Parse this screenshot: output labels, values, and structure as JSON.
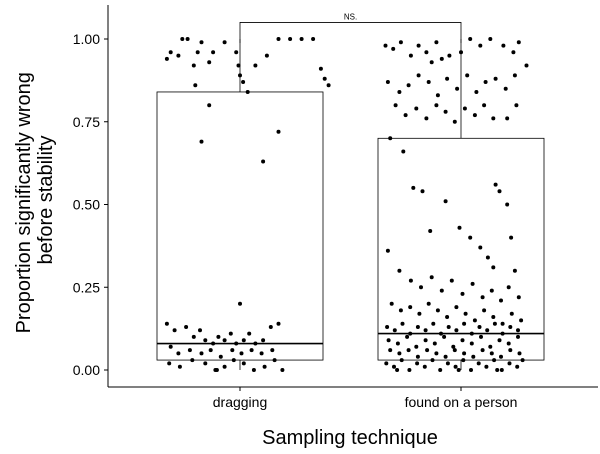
{
  "chart_data": {
    "type": "boxplot",
    "title": "",
    "xlabel": "Sampling technique",
    "ylabel_lines": [
      "Proportion significantly wrong",
      "before stability"
    ],
    "categories": [
      "dragging",
      "found on a person"
    ],
    "ylim": [
      -0.05,
      1.1
    ],
    "yticks": [
      0.0,
      0.25,
      0.5,
      0.75,
      1.0
    ],
    "ytick_labels": [
      "0.00",
      "0.25",
      "0.50",
      "0.75",
      "1.00"
    ],
    "grid": false,
    "legend": "none",
    "colors": {
      "box": "#000000",
      "points": "#000000",
      "background": "#ffffff"
    },
    "boxes": [
      {
        "category": "dragging",
        "q1": 0.03,
        "median": 0.08,
        "q3": 0.84,
        "whisker_low": 0.0,
        "whisker_high": 1.0
      },
      {
        "category": "found on a person",
        "q1": 0.03,
        "median": 0.11,
        "q3": 0.7,
        "whisker_low": 0.0,
        "whisker_high": 1.0
      }
    ],
    "significance": {
      "label": "NS.",
      "between": [
        "dragging",
        "found on a person"
      ],
      "y": 1.05
    },
    "points": [
      {
        "c": 0,
        "j": -0.45,
        "y": 0.94
      },
      {
        "c": 0,
        "j": -0.4,
        "y": 0.96
      },
      {
        "c": 0,
        "j": -0.3,
        "y": 0.95
      },
      {
        "c": 0,
        "j": -0.25,
        "y": 1.0
      },
      {
        "c": 0,
        "j": -0.18,
        "y": 1.0
      },
      {
        "c": 0,
        "j": -0.1,
        "y": 0.92
      },
      {
        "c": 0,
        "j": -0.05,
        "y": 0.96
      },
      {
        "c": 0,
        "j": 0.1,
        "y": 0.93
      },
      {
        "c": 0,
        "j": 0.15,
        "y": 0.96
      },
      {
        "c": 0,
        "j": 0.3,
        "y": 0.99
      },
      {
        "c": 0,
        "j": 0.45,
        "y": 0.96
      },
      {
        "c": 0,
        "j": 0.48,
        "y": 0.92
      },
      {
        "c": 0,
        "j": 0.5,
        "y": 0.89
      },
      {
        "c": 0,
        "j": 0.54,
        "y": 0.87
      },
      {
        "c": 0,
        "j": -0.08,
        "y": 0.86
      },
      {
        "c": 0,
        "j": 0.0,
        "y": 0.99
      },
      {
        "c": 0,
        "j": 0.6,
        "y": 0.84
      },
      {
        "c": 0,
        "j": 0.7,
        "y": 0.92
      },
      {
        "c": 0,
        "j": 0.85,
        "y": 0.95
      },
      {
        "c": 0,
        "j": 1.0,
        "y": 1.0
      },
      {
        "c": 0,
        "j": 1.15,
        "y": 1.0
      },
      {
        "c": 0,
        "j": 1.3,
        "y": 1.0
      },
      {
        "c": 0,
        "j": 1.45,
        "y": 1.0
      },
      {
        "c": 0,
        "j": 1.55,
        "y": 0.91
      },
      {
        "c": 0,
        "j": 1.6,
        "y": 0.88
      },
      {
        "c": 0,
        "j": 1.65,
        "y": 0.86
      },
      {
        "c": 0,
        "j": 0.2,
        "y": 0.0
      },
      {
        "c": 0,
        "j": 0.1,
        "y": 0.8
      },
      {
        "c": 0,
        "j": 0.0,
        "y": 0.69
      },
      {
        "c": 0,
        "j": 0.8,
        "y": 0.63
      },
      {
        "c": 0,
        "j": 1.0,
        "y": 0.72
      },
      {
        "c": 0,
        "j": 0.5,
        "y": 0.2
      },
      {
        "c": 0,
        "j": -0.45,
        "y": 0.14
      },
      {
        "c": 0,
        "j": -0.35,
        "y": 0.12
      },
      {
        "c": 0,
        "j": -0.2,
        "y": 0.13
      },
      {
        "c": 0,
        "j": -0.1,
        "y": 0.1
      },
      {
        "c": 0,
        "j": -0.02,
        "y": 0.12
      },
      {
        "c": 0,
        "j": 0.05,
        "y": 0.09
      },
      {
        "c": 0,
        "j": 0.15,
        "y": 0.08
      },
      {
        "c": 0,
        "j": 0.22,
        "y": 0.1
      },
      {
        "c": 0,
        "j": 0.3,
        "y": 0.09
      },
      {
        "c": 0,
        "j": 0.38,
        "y": 0.11
      },
      {
        "c": 0,
        "j": 0.45,
        "y": 0.08
      },
      {
        "c": 0,
        "j": 0.55,
        "y": 0.09
      },
      {
        "c": 0,
        "j": 0.62,
        "y": 0.11
      },
      {
        "c": 0,
        "j": 0.7,
        "y": 0.08
      },
      {
        "c": 0,
        "j": 0.8,
        "y": 0.09
      },
      {
        "c": 0,
        "j": 0.9,
        "y": 0.13
      },
      {
        "c": 0,
        "j": 1.0,
        "y": 0.14
      },
      {
        "c": 0,
        "j": -0.4,
        "y": 0.07
      },
      {
        "c": 0,
        "j": -0.3,
        "y": 0.05
      },
      {
        "c": 0,
        "j": -0.15,
        "y": 0.06
      },
      {
        "c": 0,
        "j": 0.0,
        "y": 0.05
      },
      {
        "c": 0,
        "j": 0.12,
        "y": 0.06
      },
      {
        "c": 0,
        "j": 0.25,
        "y": 0.04
      },
      {
        "c": 0,
        "j": 0.4,
        "y": 0.06
      },
      {
        "c": 0,
        "j": 0.52,
        "y": 0.05
      },
      {
        "c": 0,
        "j": 0.65,
        "y": 0.06
      },
      {
        "c": 0,
        "j": 0.78,
        "y": 0.05
      },
      {
        "c": 0,
        "j": 0.92,
        "y": 0.06
      },
      {
        "c": 0,
        "j": -0.42,
        "y": 0.02
      },
      {
        "c": 0,
        "j": -0.28,
        "y": 0.01
      },
      {
        "c": 0,
        "j": -0.12,
        "y": 0.03
      },
      {
        "c": 0,
        "j": 0.05,
        "y": 0.02
      },
      {
        "c": 0,
        "j": 0.18,
        "y": 0.0
      },
      {
        "c": 0,
        "j": 0.3,
        "y": 0.01
      },
      {
        "c": 0,
        "j": 0.42,
        "y": 0.03
      },
      {
        "c": 0,
        "j": 0.55,
        "y": 0.02
      },
      {
        "c": 0,
        "j": 0.68,
        "y": 0.0
      },
      {
        "c": 0,
        "j": 0.82,
        "y": 0.01
      },
      {
        "c": 0,
        "j": 0.95,
        "y": 0.03
      },
      {
        "c": 0,
        "j": 1.05,
        "y": 0.0
      },
      {
        "c": 1,
        "j": -0.48,
        "y": 0.98
      },
      {
        "c": 1,
        "j": -0.38,
        "y": 0.97
      },
      {
        "c": 1,
        "j": -0.28,
        "y": 0.99
      },
      {
        "c": 1,
        "j": -0.15,
        "y": 0.95
      },
      {
        "c": 1,
        "j": -0.05,
        "y": 0.98
      },
      {
        "c": 1,
        "j": 0.05,
        "y": 0.96
      },
      {
        "c": 1,
        "j": 0.12,
        "y": 0.93
      },
      {
        "c": 1,
        "j": 0.18,
        "y": 0.99
      },
      {
        "c": 1,
        "j": 0.25,
        "y": 0.94
      },
      {
        "c": 1,
        "j": 0.35,
        "y": 0.95
      },
      {
        "c": 1,
        "j": 0.5,
        "y": 0.96
      },
      {
        "c": 1,
        "j": 0.62,
        "y": 1.0
      },
      {
        "c": 1,
        "j": 0.75,
        "y": 0.98
      },
      {
        "c": 1,
        "j": 0.88,
        "y": 1.0
      },
      {
        "c": 1,
        "j": 1.05,
        "y": 0.98
      },
      {
        "c": 1,
        "j": 1.18,
        "y": 0.96
      },
      {
        "c": 1,
        "j": 1.25,
        "y": 0.99
      },
      {
        "c": 1,
        "j": 1.35,
        "y": 0.92
      },
      {
        "c": 1,
        "j": -0.45,
        "y": 0.87
      },
      {
        "c": 1,
        "j": -0.3,
        "y": 0.84
      },
      {
        "c": 1,
        "j": -0.18,
        "y": 0.86
      },
      {
        "c": 1,
        "j": -0.05,
        "y": 0.89
      },
      {
        "c": 1,
        "j": 0.08,
        "y": 0.87
      },
      {
        "c": 1,
        "j": 0.2,
        "y": 0.83
      },
      {
        "c": 1,
        "j": 0.32,
        "y": 0.88
      },
      {
        "c": 1,
        "j": 0.45,
        "y": 0.85
      },
      {
        "c": 1,
        "j": 0.58,
        "y": 0.89
      },
      {
        "c": 1,
        "j": 0.7,
        "y": 0.84
      },
      {
        "c": 1,
        "j": 0.82,
        "y": 0.87
      },
      {
        "c": 1,
        "j": 0.95,
        "y": 0.88
      },
      {
        "c": 1,
        "j": 1.08,
        "y": 0.85
      },
      {
        "c": 1,
        "j": 1.2,
        "y": 0.89
      },
      {
        "c": 1,
        "j": -0.35,
        "y": 0.8
      },
      {
        "c": 1,
        "j": -0.22,
        "y": 0.77
      },
      {
        "c": 1,
        "j": -0.08,
        "y": 0.79
      },
      {
        "c": 1,
        "j": 0.05,
        "y": 0.76
      },
      {
        "c": 1,
        "j": 0.18,
        "y": 0.8
      },
      {
        "c": 1,
        "j": 0.3,
        "y": 0.78
      },
      {
        "c": 1,
        "j": 0.42,
        "y": 0.75
      },
      {
        "c": 1,
        "j": 0.55,
        "y": 0.79
      },
      {
        "c": 1,
        "j": 0.68,
        "y": 0.77
      },
      {
        "c": 1,
        "j": 0.8,
        "y": 0.8
      },
      {
        "c": 1,
        "j": 0.92,
        "y": 0.76
      },
      {
        "c": 1,
        "j": 1.1,
        "y": 0.76
      },
      {
        "c": 1,
        "j": 1.22,
        "y": 0.8
      },
      {
        "c": 1,
        "j": -0.42,
        "y": 0.7
      },
      {
        "c": 1,
        "j": -0.25,
        "y": 0.66
      },
      {
        "c": 1,
        "j": -0.12,
        "y": 0.55
      },
      {
        "c": 1,
        "j": 0.0,
        "y": 0.54
      },
      {
        "c": 1,
        "j": 0.1,
        "y": 0.42
      },
      {
        "c": 1,
        "j": 0.3,
        "y": 0.51
      },
      {
        "c": 1,
        "j": 0.48,
        "y": 0.43
      },
      {
        "c": 1,
        "j": 0.62,
        "y": 0.4
      },
      {
        "c": 1,
        "j": 0.75,
        "y": 0.37
      },
      {
        "c": 1,
        "j": 0.85,
        "y": 0.34
      },
      {
        "c": 1,
        "j": 0.92,
        "y": 0.31
      },
      {
        "c": 1,
        "j": 0.95,
        "y": 0.56
      },
      {
        "c": 1,
        "j": 1.0,
        "y": 0.54
      },
      {
        "c": 1,
        "j": 1.1,
        "y": 0.5
      },
      {
        "c": 1,
        "j": 1.15,
        "y": 0.4
      },
      {
        "c": 1,
        "j": 1.2,
        "y": 0.3
      },
      {
        "c": 1,
        "j": -0.45,
        "y": 0.36
      },
      {
        "c": 1,
        "j": -0.3,
        "y": 0.3
      },
      {
        "c": 1,
        "j": -0.15,
        "y": 0.27
      },
      {
        "c": 1,
        "j": -0.02,
        "y": 0.25
      },
      {
        "c": 1,
        "j": 0.12,
        "y": 0.28
      },
      {
        "c": 1,
        "j": 0.25,
        "y": 0.24
      },
      {
        "c": 1,
        "j": 0.38,
        "y": 0.27
      },
      {
        "c": 1,
        "j": 0.52,
        "y": 0.23
      },
      {
        "c": 1,
        "j": 0.65,
        "y": 0.26
      },
      {
        "c": 1,
        "j": 0.78,
        "y": 0.22
      },
      {
        "c": 1,
        "j": 0.9,
        "y": 0.24
      },
      {
        "c": 1,
        "j": 1.02,
        "y": 0.21
      },
      {
        "c": 1,
        "j": 1.12,
        "y": 0.25
      },
      {
        "c": 1,
        "j": 1.25,
        "y": 0.22
      },
      {
        "c": 1,
        "j": -0.4,
        "y": 0.2
      },
      {
        "c": 1,
        "j": -0.28,
        "y": 0.18
      },
      {
        "c": 1,
        "j": -0.16,
        "y": 0.19
      },
      {
        "c": 1,
        "j": -0.04,
        "y": 0.17
      },
      {
        "c": 1,
        "j": 0.08,
        "y": 0.2
      },
      {
        "c": 1,
        "j": 0.2,
        "y": 0.18
      },
      {
        "c": 1,
        "j": 0.32,
        "y": 0.16
      },
      {
        "c": 1,
        "j": 0.44,
        "y": 0.19
      },
      {
        "c": 1,
        "j": 0.56,
        "y": 0.17
      },
      {
        "c": 1,
        "j": 0.68,
        "y": 0.15
      },
      {
        "c": 1,
        "j": 0.8,
        "y": 0.18
      },
      {
        "c": 1,
        "j": 0.92,
        "y": 0.16
      },
      {
        "c": 1,
        "j": 1.04,
        "y": 0.14
      },
      {
        "c": 1,
        "j": 1.16,
        "y": 0.17
      },
      {
        "c": 1,
        "j": 1.28,
        "y": 0.15
      },
      {
        "c": 1,
        "j": -0.46,
        "y": 0.13
      },
      {
        "c": 1,
        "j": -0.36,
        "y": 0.12
      },
      {
        "c": 1,
        "j": -0.26,
        "y": 0.14
      },
      {
        "c": 1,
        "j": -0.16,
        "y": 0.11
      },
      {
        "c": 1,
        "j": -0.06,
        "y": 0.13
      },
      {
        "c": 1,
        "j": 0.04,
        "y": 0.12
      },
      {
        "c": 1,
        "j": 0.14,
        "y": 0.14
      },
      {
        "c": 1,
        "j": 0.24,
        "y": 0.11
      },
      {
        "c": 1,
        "j": 0.34,
        "y": 0.13
      },
      {
        "c": 1,
        "j": 0.44,
        "y": 0.12
      },
      {
        "c": 1,
        "j": 0.54,
        "y": 0.14
      },
      {
        "c": 1,
        "j": 0.64,
        "y": 0.11
      },
      {
        "c": 1,
        "j": 0.74,
        "y": 0.13
      },
      {
        "c": 1,
        "j": 0.84,
        "y": 0.12
      },
      {
        "c": 1,
        "j": 0.94,
        "y": 0.14
      },
      {
        "c": 1,
        "j": 1.04,
        "y": 0.11
      },
      {
        "c": 1,
        "j": 1.14,
        "y": 0.13
      },
      {
        "c": 1,
        "j": 1.24,
        "y": 0.12
      },
      {
        "c": 1,
        "j": -0.44,
        "y": 0.09
      },
      {
        "c": 1,
        "j": -0.32,
        "y": 0.08
      },
      {
        "c": 1,
        "j": -0.2,
        "y": 0.1
      },
      {
        "c": 1,
        "j": -0.08,
        "y": 0.07
      },
      {
        "c": 1,
        "j": 0.04,
        "y": 0.09
      },
      {
        "c": 1,
        "j": 0.16,
        "y": 0.08
      },
      {
        "c": 1,
        "j": 0.28,
        "y": 0.1
      },
      {
        "c": 1,
        "j": 0.4,
        "y": 0.07
      },
      {
        "c": 1,
        "j": 0.52,
        "y": 0.09
      },
      {
        "c": 1,
        "j": 0.64,
        "y": 0.08
      },
      {
        "c": 1,
        "j": 0.76,
        "y": 0.1
      },
      {
        "c": 1,
        "j": 0.88,
        "y": 0.07
      },
      {
        "c": 1,
        "j": 1.0,
        "y": 0.09
      },
      {
        "c": 1,
        "j": 1.12,
        "y": 0.08
      },
      {
        "c": 1,
        "j": 1.24,
        "y": 0.1
      },
      {
        "c": 1,
        "j": -0.42,
        "y": 0.06
      },
      {
        "c": 1,
        "j": -0.3,
        "y": 0.05
      },
      {
        "c": 1,
        "j": -0.18,
        "y": 0.06
      },
      {
        "c": 1,
        "j": -0.06,
        "y": 0.04
      },
      {
        "c": 1,
        "j": 0.06,
        "y": 0.06
      },
      {
        "c": 1,
        "j": 0.18,
        "y": 0.05
      },
      {
        "c": 1,
        "j": 0.3,
        "y": 0.04
      },
      {
        "c": 1,
        "j": 0.42,
        "y": 0.06
      },
      {
        "c": 1,
        "j": 0.54,
        "y": 0.05
      },
      {
        "c": 1,
        "j": 0.66,
        "y": 0.04
      },
      {
        "c": 1,
        "j": 0.78,
        "y": 0.06
      },
      {
        "c": 1,
        "j": 0.9,
        "y": 0.05
      },
      {
        "c": 1,
        "j": 1.02,
        "y": 0.04
      },
      {
        "c": 1,
        "j": 1.14,
        "y": 0.06
      },
      {
        "c": 1,
        "j": 1.26,
        "y": 0.05
      },
      {
        "c": 1,
        "j": -0.47,
        "y": 0.02
      },
      {
        "c": 1,
        "j": -0.37,
        "y": 0.01
      },
      {
        "c": 1,
        "j": -0.27,
        "y": 0.03
      },
      {
        "c": 1,
        "j": -0.17,
        "y": 0.0
      },
      {
        "c": 1,
        "j": -0.07,
        "y": 0.02
      },
      {
        "c": 1,
        "j": 0.03,
        "y": 0.01
      },
      {
        "c": 1,
        "j": 0.13,
        "y": 0.03
      },
      {
        "c": 1,
        "j": 0.23,
        "y": 0.0
      },
      {
        "c": 1,
        "j": 0.33,
        "y": 0.02
      },
      {
        "c": 1,
        "j": 0.43,
        "y": 0.01
      },
      {
        "c": 1,
        "j": 0.53,
        "y": 0.03
      },
      {
        "c": 1,
        "j": 0.63,
        "y": 0.0
      },
      {
        "c": 1,
        "j": 0.73,
        "y": 0.02
      },
      {
        "c": 1,
        "j": 0.83,
        "y": 0.01
      },
      {
        "c": 1,
        "j": 0.93,
        "y": 0.03
      },
      {
        "c": 1,
        "j": 1.03,
        "y": 0.0
      },
      {
        "c": 1,
        "j": 1.13,
        "y": 0.02
      },
      {
        "c": 1,
        "j": 1.23,
        "y": 0.01
      },
      {
        "c": 1,
        "j": 1.3,
        "y": 0.03
      },
      {
        "c": 1,
        "j": -0.33,
        "y": 0.0
      },
      {
        "c": 1,
        "j": 0.47,
        "y": 0.0
      },
      {
        "c": 1,
        "j": 0.97,
        "y": 0.0
      }
    ]
  }
}
